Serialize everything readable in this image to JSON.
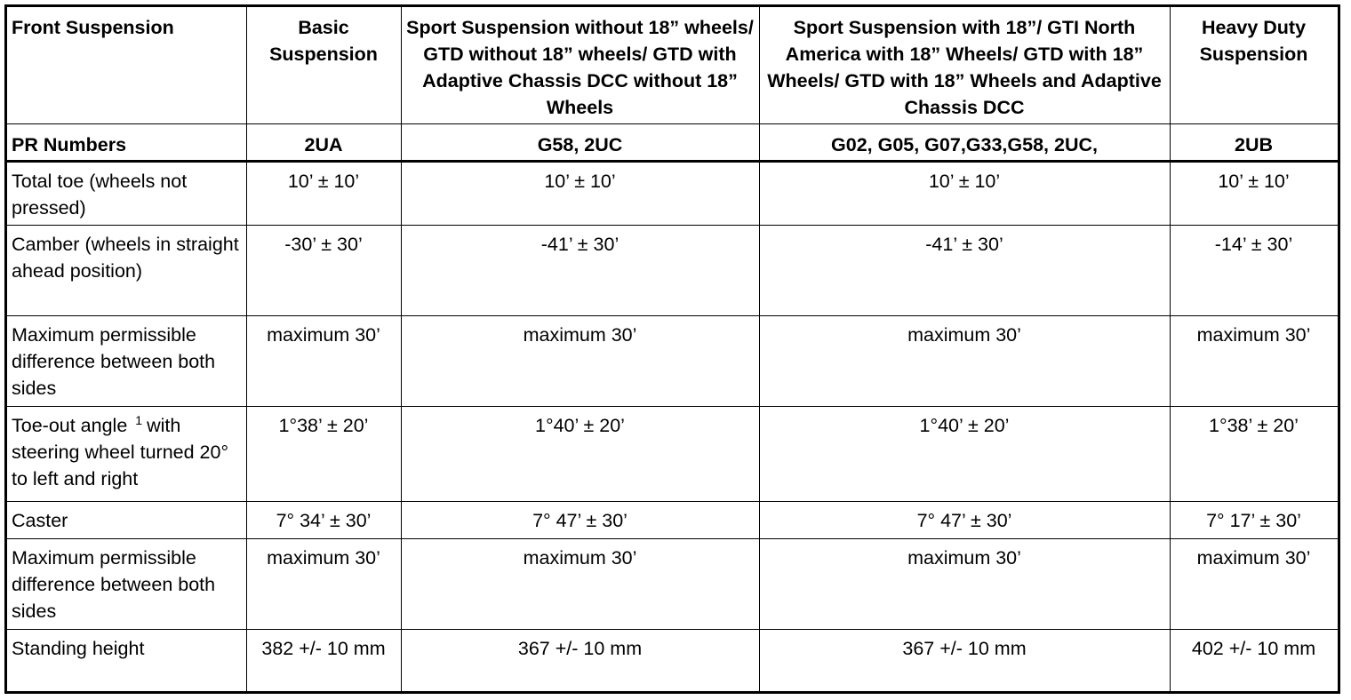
{
  "table": {
    "header": [
      "Front Suspension",
      "Basic Suspension",
      "Sport Suspension without 18” wheels/ GTD without 18” wheels/ GTD with Adaptive Chassis DCC without 18” Wheels",
      "Sport Suspension with 18”/ GTI North America with 18” Wheels/ GTD with 18” Wheels/ GTD with 18” Wheels and Adaptive Chassis DCC",
      "Heavy Duty Suspension"
    ],
    "rows": [
      [
        "PR Numbers",
        "2UA",
        "G58, 2UC",
        "G02, G05, G07,G33,G58, 2UC,",
        "2UB"
      ],
      [
        "Total toe (wheels not pressed)",
        "10’ ± 10’",
        "10’ ± 10’",
        "10’ ± 10’",
        "10’ ± 10’"
      ],
      [
        "Camber (wheels in straight ahead position)",
        "-30’ ± 30’",
        "-41’ ± 30’",
        "-41’ ± 30’",
        "-14’ ± 30’"
      ],
      [
        "Maximum permissible difference between both sides",
        "maximum 30’",
        "maximum 30’",
        "maximum 30’",
        "maximum 30’"
      ],
      [
        {
          "text": "Toe-out angle",
          "footnote": "1",
          "text_after": "with steering wheel turned 20° to left and right"
        },
        "1°38’ ± 20’",
        "1°40’ ± 20’",
        "1°40’ ± 20’",
        "1°38’ ± 20’"
      ],
      [
        "Caster",
        "7° 34’ ± 30’",
        "7° 47’ ± 30’",
        "7° 47’ ± 30’",
        "7° 17’ ± 30’"
      ],
      [
        "Maximum permissible difference between both sides",
        "maximum 30’",
        "maximum 30’",
        "maximum 30’",
        "maximum 30’"
      ],
      [
        "Standing height",
        "382 +/- 10 mm",
        "367 +/- 10 mm",
        "367 +/- 10 mm",
        "402 +/- 10 mm"
      ]
    ]
  }
}
